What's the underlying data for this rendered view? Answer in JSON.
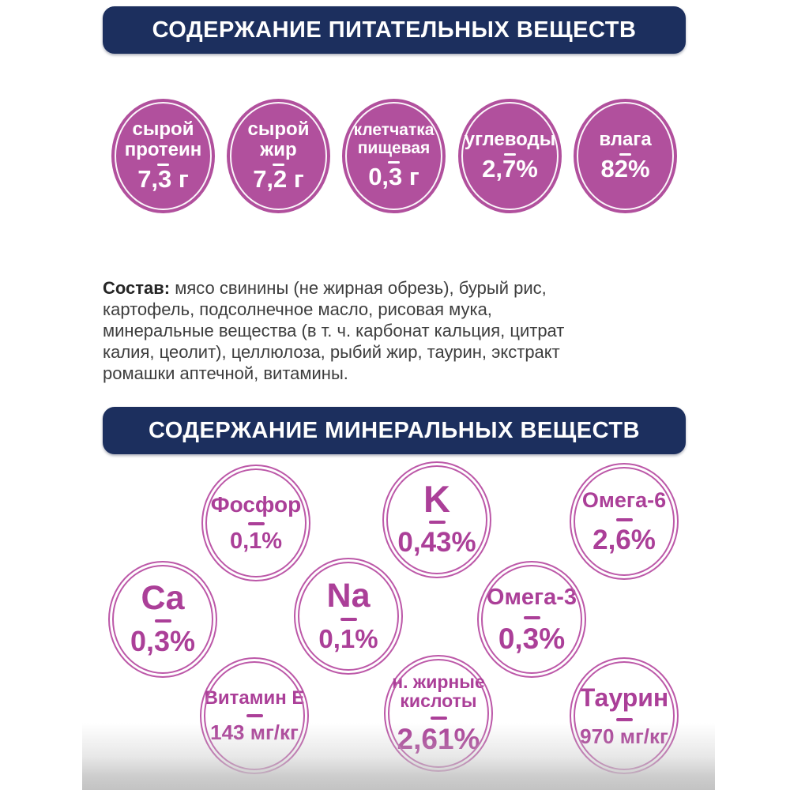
{
  "colors": {
    "banner_navy": "#1c2f5e",
    "circle_magenta": "#b1509d",
    "outline_magenta": "#bc58a8",
    "mineral_text": "#ab3f98",
    "body_text": "#3d3d3d",
    "bottom_fade": "#c3c3c3"
  },
  "nutrient_section": {
    "title": "СОДЕРЖАНИЕ ПИТАТЕЛЬНЫХ ВЕЩЕСТВ",
    "items": [
      {
        "label": "сырой\nпротеин",
        "value": "7,3 г"
      },
      {
        "label": "сырой\nжир",
        "value": "7,2 г"
      },
      {
        "label": "клетчатка\nпищевая",
        "value": "0,3 г"
      },
      {
        "label": "углеводы",
        "value": "2,7%"
      },
      {
        "label": "влага",
        "value": "82%"
      }
    ]
  },
  "composition": {
    "label": "Состав:",
    "text": " мясо свинины (не жирная обрезь), бурый рис,\nкартофель, подсолнечное масло, рисовая мука,\nминеральные вещества (в т. ч. карбонат кальция, цитрат\nкалия, цеолит), целлюлоза, рыбий жир, таурин, экстракт\nромашки аптечной, витамины."
  },
  "mineral_section": {
    "title": "СОДЕРЖАНИЕ МИНЕРАЛЬНЫХ ВЕЩЕСТВ",
    "items": [
      {
        "label": "Фосфор",
        "value": "0,1%"
      },
      {
        "label": "K",
        "value": "0,43%"
      },
      {
        "label": "Омега-6",
        "value": "2,6%"
      },
      {
        "label": "Ca",
        "value": "0,3%"
      },
      {
        "label": "Na",
        "value": "0,1%"
      },
      {
        "label": "Омега-3",
        "value": "0,3%"
      },
      {
        "label": "Витамин Е",
        "value": "143 мг/кг"
      },
      {
        "label": "н. жирные\nкислоты",
        "value": "2,61%"
      },
      {
        "label": "Таурин",
        "value": "970 мг/кг"
      }
    ]
  }
}
